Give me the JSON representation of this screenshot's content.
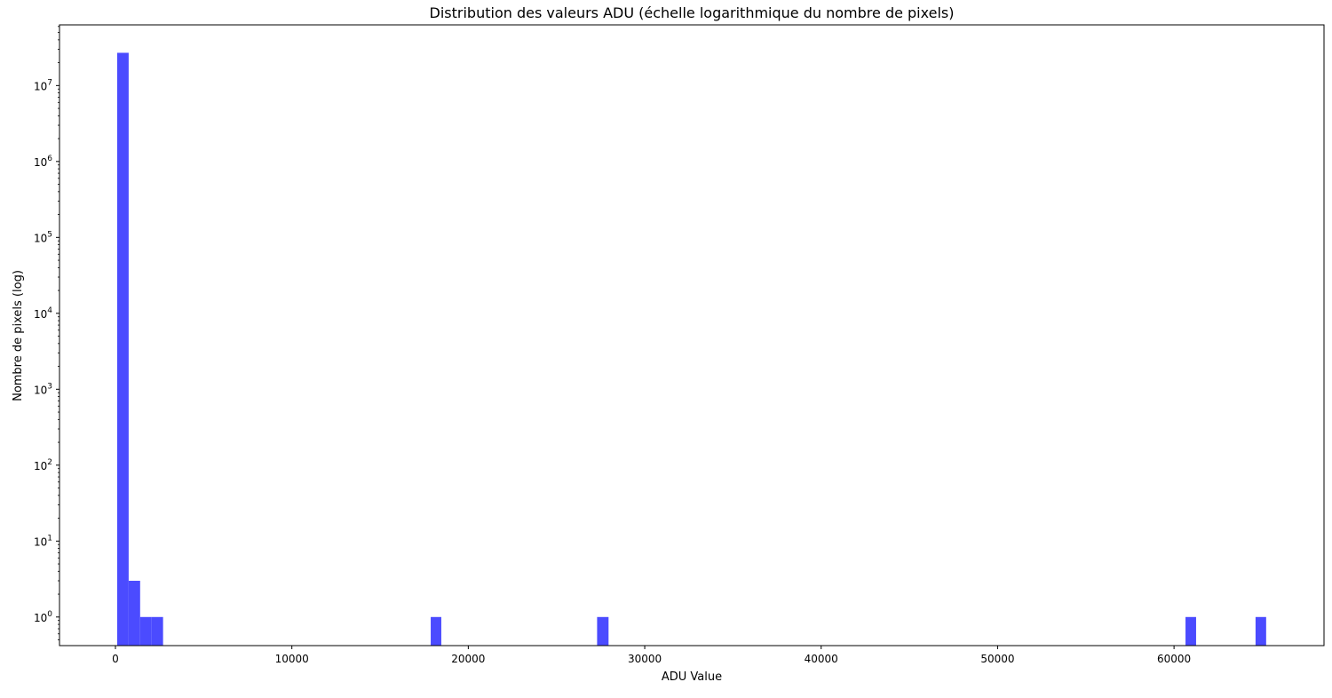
{
  "chart_data": {
    "type": "bar",
    "subtype": "histogram",
    "title": "Distribution des valeurs ADU (échelle logarithmique du nombre de pixels)",
    "xlabel": "ADU Value",
    "ylabel": "Nombre de pixels (log)",
    "xlim": [
      -3170,
      68500
    ],
    "ylim": [
      0.42,
      63000000
    ],
    "yscale": "log",
    "grid": false,
    "color": "#4b4bff",
    "xticks": [
      0,
      10000,
      20000,
      30000,
      40000,
      50000,
      60000
    ],
    "xtick_labels": [
      "0",
      "10000",
      "20000",
      "30000",
      "40000",
      "50000",
      "60000"
    ],
    "yticks": [
      1,
      10,
      100,
      1000,
      10000,
      100000,
      1000000,
      10000000
    ],
    "ytick_exponents": [
      "0",
      "1",
      "2",
      "3",
      "4",
      "5",
      "6",
      "7"
    ],
    "ytick_base": "10",
    "bins": [
      {
        "x0": 100,
        "x1": 750,
        "count": 27000000
      },
      {
        "x0": 750,
        "x1": 1400,
        "count": 3
      },
      {
        "x0": 1400,
        "x1": 2050,
        "count": 1
      },
      {
        "x0": 2050,
        "x1": 2700,
        "count": 1
      },
      {
        "x0": 17870,
        "x1": 18470,
        "count": 1
      },
      {
        "x0": 27300,
        "x1": 27950,
        "count": 1
      },
      {
        "x0": 60650,
        "x1": 61250,
        "count": 1
      },
      {
        "x0": 64620,
        "x1": 65220,
        "count": 1
      }
    ]
  }
}
